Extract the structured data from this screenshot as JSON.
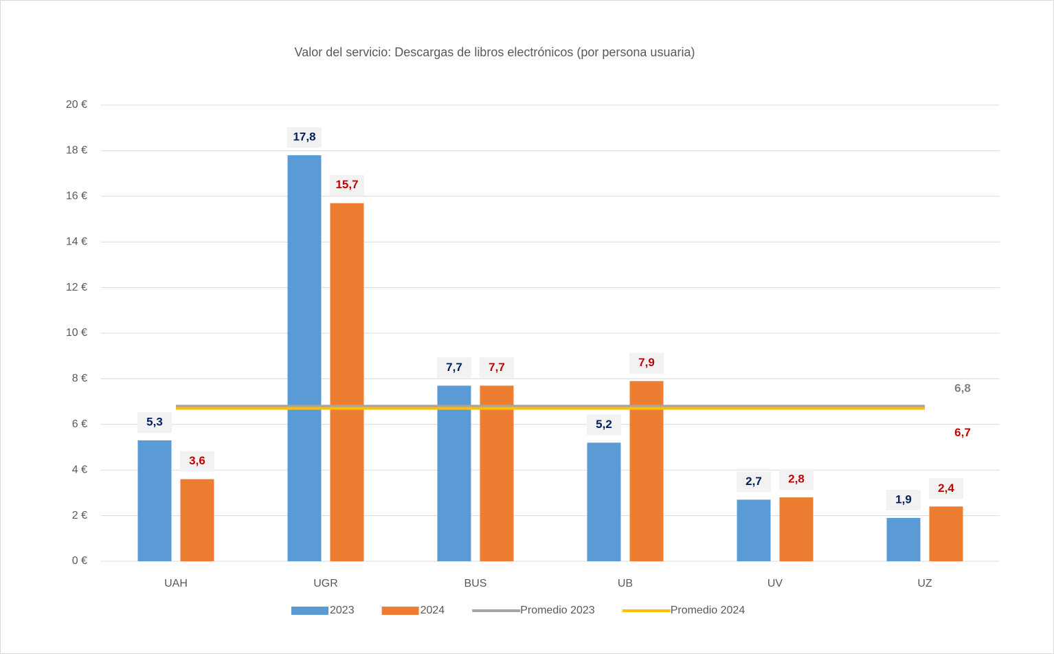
{
  "chart_data": {
    "type": "bar",
    "title": "Valor del servicio: Descargas de libros electrónicos (por persona usuaria)",
    "categories": [
      "UAH",
      "UGR",
      "BUS",
      "UB",
      "UV",
      "UZ"
    ],
    "series": [
      {
        "name": "2023",
        "color": "#5b9bd5",
        "label_color": "#002060",
        "values": [
          5.3,
          17.8,
          7.7,
          5.2,
          2.7,
          1.9
        ],
        "value_labels": [
          "5,3",
          "17,8",
          "7,7",
          "5,2",
          "2,7",
          "1,9"
        ]
      },
      {
        "name": "2024",
        "color": "#ed7d31",
        "label_color": "#c00000",
        "values": [
          3.6,
          15.7,
          7.7,
          7.9,
          2.8,
          2.4
        ],
        "value_labels": [
          "3,6",
          "15,7",
          "7,7",
          "7,9",
          "2,8",
          "2,4"
        ]
      },
      {
        "name": "Promedio 2023",
        "type": "line",
        "color": "#a5a5a5",
        "label_color": "#808080",
        "values": [
          6.8,
          6.8,
          6.8,
          6.8,
          6.8,
          6.8
        ],
        "value_labels": [
          null,
          null,
          null,
          null,
          null,
          "6,8"
        ]
      },
      {
        "name": "Promedio 2024",
        "type": "line",
        "color": "#ffc000",
        "label_color": "#c00000",
        "values": [
          6.7,
          6.7,
          6.7,
          6.7,
          6.7,
          6.7
        ],
        "value_labels": [
          null,
          null,
          null,
          null,
          null,
          "6,7"
        ]
      }
    ],
    "ylim": [
      0,
      20
    ],
    "yticks": [
      {
        "value": 0,
        "label": "0 €"
      },
      {
        "value": 2,
        "label": "2 €"
      },
      {
        "value": 4,
        "label": "4 €"
      },
      {
        "value": 6,
        "label": "6 €"
      },
      {
        "value": 8,
        "label": "8 €"
      },
      {
        "value": 10,
        "label": "10 €"
      },
      {
        "value": 12,
        "label": "12 €"
      },
      {
        "value": 14,
        "label": "14 €"
      },
      {
        "value": 16,
        "label": "16 €"
      },
      {
        "value": 18,
        "label": "18 €"
      },
      {
        "value": 20,
        "label": "20 €"
      }
    ],
    "grid": true,
    "legend": "bottom"
  }
}
